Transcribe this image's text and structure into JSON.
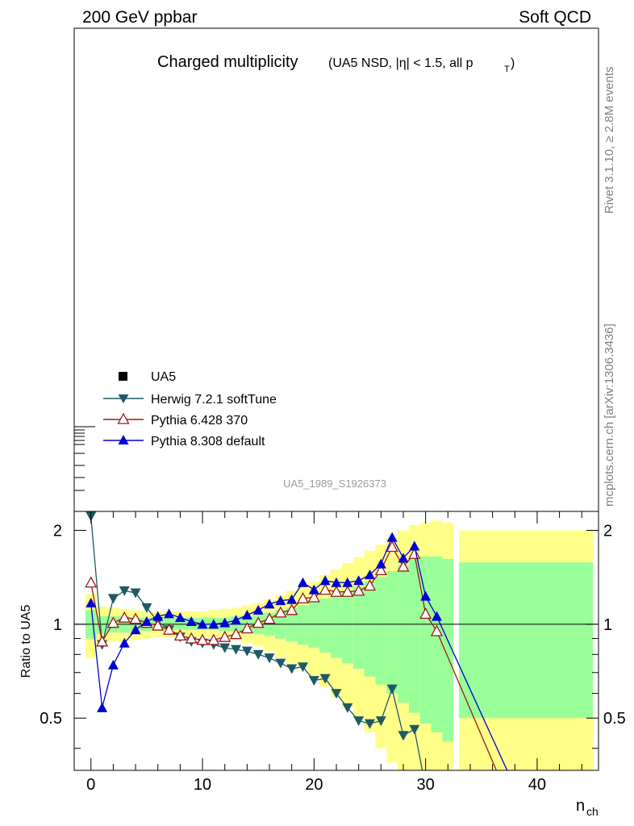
{
  "header": {
    "energy_label": "200 GeV ppbar",
    "category_label": "Soft QCD",
    "title_main": "Charged multiplicity",
    "title_sub": "(UA5 NSD, |η| < 1.5, all p",
    "title_sub_sub": "T",
    "title_sub_end": ")"
  },
  "side": {
    "rivet_label": "Rivet 3.1.10, ≥ 2.8M events",
    "url_label": "mcplots.cern.ch [arXiv:1306.3436]"
  },
  "analysis_id": "UA5_1989_S1926373",
  "legend": {
    "position": "center-left",
    "entries": [
      {
        "label": "UA5",
        "marker": "square",
        "color": "#000000"
      },
      {
        "label": "Herwig 7.2.1 softTune",
        "marker": "triangle-down",
        "color": "#1e5a64"
      },
      {
        "label": "Pythia 6.428 370",
        "marker": "triangle-up-open",
        "color": "#9b1a1a"
      },
      {
        "label": "Pythia 8.308 default",
        "marker": "triangle-up",
        "color": "#0000d0"
      }
    ]
  },
  "chart_data": {
    "type": "line",
    "xlabel": "n",
    "xlabel_sub": "ch",
    "ylabel": "Ratio to UA5",
    "xlim": [
      -1.5,
      45.5
    ],
    "ylim": [
      0.34,
      2.3
    ],
    "log_y": true,
    "x_ticks": [
      0,
      10,
      20,
      30,
      40
    ],
    "y_ticks": [
      0.5,
      1,
      2
    ],
    "reference_line": 1,
    "bands": {
      "inner_color": "#99ff99",
      "outer_color": "#ffff88",
      "bins": [
        {
          "x0": -0.5,
          "x1": 0.5,
          "inner": [
            0.9,
            1.11
          ],
          "outer": [
            0.78,
            1.25
          ]
        },
        {
          "x0": 0.5,
          "x1": 1.5,
          "inner": [
            0.93,
            1.06
          ],
          "outer": [
            0.86,
            1.14
          ]
        },
        {
          "x0": 1.5,
          "x1": 2.5,
          "inner": [
            0.94,
            1.06
          ],
          "outer": [
            0.88,
            1.13
          ]
        },
        {
          "x0": 2.5,
          "x1": 3.5,
          "inner": [
            0.94,
            1.06
          ],
          "outer": [
            0.88,
            1.12
          ]
        },
        {
          "x0": 3.5,
          "x1": 4.5,
          "inner": [
            0.95,
            1.05
          ],
          "outer": [
            0.89,
            1.11
          ]
        },
        {
          "x0": 4.5,
          "x1": 5.5,
          "inner": [
            0.95,
            1.05
          ],
          "outer": [
            0.9,
            1.1
          ]
        },
        {
          "x0": 5.5,
          "x1": 6.5,
          "inner": [
            0.96,
            1.05
          ],
          "outer": [
            0.91,
            1.1
          ]
        },
        {
          "x0": 6.5,
          "x1": 7.5,
          "inner": [
            0.96,
            1.05
          ],
          "outer": [
            0.91,
            1.1
          ]
        },
        {
          "x0": 7.5,
          "x1": 8.5,
          "inner": [
            0.96,
            1.05
          ],
          "outer": [
            0.91,
            1.1
          ]
        },
        {
          "x0": 8.5,
          "x1": 9.5,
          "inner": [
            0.96,
            1.05
          ],
          "outer": [
            0.91,
            1.1
          ]
        },
        {
          "x0": 9.5,
          "x1": 10.5,
          "inner": [
            0.96,
            1.05
          ],
          "outer": [
            0.91,
            1.1
          ]
        },
        {
          "x0": 10.5,
          "x1": 11.5,
          "inner": [
            0.96,
            1.05
          ],
          "outer": [
            0.91,
            1.11
          ]
        },
        {
          "x0": 11.5,
          "x1": 12.5,
          "inner": [
            0.95,
            1.05
          ],
          "outer": [
            0.9,
            1.12
          ]
        },
        {
          "x0": 12.5,
          "x1": 13.5,
          "inner": [
            0.95,
            1.06
          ],
          "outer": [
            0.89,
            1.13
          ]
        },
        {
          "x0": 13.5,
          "x1": 14.5,
          "inner": [
            0.94,
            1.06
          ],
          "outer": [
            0.87,
            1.15
          ]
        },
        {
          "x0": 14.5,
          "x1": 15.5,
          "inner": [
            0.93,
            1.07
          ],
          "outer": [
            0.85,
            1.17
          ]
        },
        {
          "x0": 15.5,
          "x1": 16.5,
          "inner": [
            0.92,
            1.09
          ],
          "outer": [
            0.82,
            1.2
          ]
        },
        {
          "x0": 16.5,
          "x1": 17.5,
          "inner": [
            0.9,
            1.11
          ],
          "outer": [
            0.78,
            1.24
          ]
        },
        {
          "x0": 17.5,
          "x1": 18.5,
          "inner": [
            0.88,
            1.13
          ],
          "outer": [
            0.75,
            1.28
          ]
        },
        {
          "x0": 18.5,
          "x1": 19.5,
          "inner": [
            0.86,
            1.15
          ],
          "outer": [
            0.72,
            1.32
          ]
        },
        {
          "x0": 19.5,
          "x1": 20.5,
          "inner": [
            0.84,
            1.18
          ],
          "outer": [
            0.68,
            1.37
          ]
        },
        {
          "x0": 20.5,
          "x1": 21.5,
          "inner": [
            0.81,
            1.21
          ],
          "outer": [
            0.63,
            1.44
          ]
        },
        {
          "x0": 21.5,
          "x1": 22.5,
          "inner": [
            0.78,
            1.24
          ],
          "outer": [
            0.58,
            1.5
          ]
        },
        {
          "x0": 22.5,
          "x1": 23.5,
          "inner": [
            0.75,
            1.28
          ],
          "outer": [
            0.54,
            1.57
          ]
        },
        {
          "x0": 23.5,
          "x1": 24.5,
          "inner": [
            0.72,
            1.32
          ],
          "outer": [
            0.5,
            1.64
          ]
        },
        {
          "x0": 24.5,
          "x1": 25.5,
          "inner": [
            0.68,
            1.37
          ],
          "outer": [
            0.45,
            1.72
          ]
        },
        {
          "x0": 25.5,
          "x1": 26.5,
          "inner": [
            0.64,
            1.42
          ],
          "outer": [
            0.4,
            1.8
          ]
        },
        {
          "x0": 26.5,
          "x1": 27.5,
          "inner": [
            0.6,
            1.48
          ],
          "outer": [
            0.36,
            1.9
          ]
        },
        {
          "x0": 27.5,
          "x1": 28.5,
          "inner": [
            0.56,
            1.55
          ],
          "outer": [
            0.33,
            2.0
          ]
        },
        {
          "x0": 28.5,
          "x1": 29.5,
          "inner": [
            0.52,
            1.62
          ],
          "outer": [
            0.33,
            2.08
          ]
        },
        {
          "x0": 29.5,
          "x1": 30.5,
          "inner": [
            0.48,
            1.65
          ],
          "outer": [
            0.33,
            2.12
          ]
        },
        {
          "x0": 30.5,
          "x1": 31.5,
          "inner": [
            0.45,
            1.65
          ],
          "outer": [
            0.33,
            2.15
          ]
        },
        {
          "x0": 31.5,
          "x1": 32.5,
          "inner": [
            0.42,
            1.62
          ],
          "outer": [
            0.33,
            2.12
          ]
        },
        {
          "x0": 33.0,
          "x1": 45.0,
          "inner": [
            0.5,
            1.58
          ],
          "outer": [
            0.33,
            2.0
          ]
        }
      ]
    },
    "series": [
      {
        "name": "Herwig 7.2.1 softTune",
        "color": "#1e5a64",
        "marker": "triangle-down",
        "x": [
          0,
          1,
          2,
          3,
          4,
          5,
          6,
          7,
          8,
          9,
          10,
          11,
          12,
          13,
          14,
          15,
          16,
          17,
          18,
          19,
          20,
          21,
          22,
          23,
          24,
          25,
          26,
          27,
          28,
          29,
          30
        ],
        "y": [
          2.22,
          0.86,
          1.21,
          1.28,
          1.26,
          1.13,
          1.02,
          0.96,
          0.91,
          0.88,
          0.87,
          0.86,
          0.84,
          0.83,
          0.82,
          0.8,
          0.78,
          0.75,
          0.72,
          0.73,
          0.66,
          0.67,
          0.6,
          0.54,
          0.49,
          0.48,
          0.49,
          0.62,
          0.44,
          0.46,
          0.3
        ]
      },
      {
        "name": "Pythia 6.428 370",
        "color": "#9b1a1a",
        "marker": "triangle-up-open",
        "x": [
          0,
          1,
          2,
          3,
          4,
          5,
          6,
          7,
          8,
          9,
          10,
          11,
          12,
          13,
          14,
          15,
          16,
          17,
          18,
          19,
          20,
          21,
          22,
          23,
          24,
          25,
          26,
          27,
          28,
          29,
          30,
          31,
          37
        ],
        "y": [
          1.36,
          0.88,
          1.01,
          1.05,
          1.04,
          1.01,
          0.99,
          0.96,
          0.92,
          0.9,
          0.89,
          0.89,
          0.91,
          0.93,
          0.97,
          1.01,
          1.04,
          1.09,
          1.11,
          1.21,
          1.22,
          1.29,
          1.27,
          1.27,
          1.28,
          1.33,
          1.49,
          1.77,
          1.53,
          1.68,
          1.08,
          0.95,
          0.3
        ]
      },
      {
        "name": "Pythia 8.308 default",
        "color": "#0000d0",
        "marker": "triangle-up",
        "x": [
          0,
          1,
          2,
          3,
          4,
          5,
          6,
          7,
          8,
          9,
          10,
          11,
          12,
          13,
          14,
          15,
          16,
          17,
          18,
          19,
          20,
          21,
          22,
          23,
          24,
          25,
          26,
          27,
          28,
          29,
          30,
          31,
          38
        ],
        "y": [
          1.17,
          0.54,
          0.74,
          0.87,
          0.96,
          1.02,
          1.06,
          1.08,
          1.05,
          1.02,
          1.0,
          1.0,
          1.01,
          1.03,
          1.07,
          1.11,
          1.16,
          1.19,
          1.2,
          1.36,
          1.29,
          1.38,
          1.36,
          1.36,
          1.38,
          1.44,
          1.56,
          1.9,
          1.63,
          1.78,
          1.23,
          1.06,
          0.3
        ]
      }
    ]
  }
}
